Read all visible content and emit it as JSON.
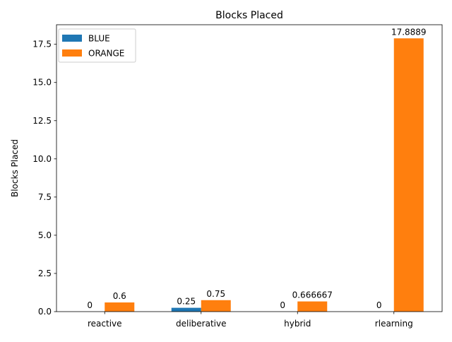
{
  "chart_data": {
    "type": "bar",
    "title": "Blocks Placed",
    "xlabel": "",
    "ylabel": "Blocks Placed",
    "categories": [
      "reactive",
      "deliberative",
      "hybrid",
      "rlearning"
    ],
    "series": [
      {
        "name": "BLUE",
        "color": "#1f77b4",
        "values": [
          0,
          0.25,
          0,
          0
        ],
        "labels": [
          "0",
          "0.25",
          "0",
          "0"
        ]
      },
      {
        "name": "ORANGE",
        "color": "#ff7f0e",
        "values": [
          0.6,
          0.75,
          0.666667,
          17.8889
        ],
        "labels": [
          "0.6",
          "0.75",
          "0.666667",
          "17.8889"
        ]
      }
    ],
    "ylim": [
      0,
      18.78
    ],
    "yticks": [
      "0.0",
      "2.5",
      "5.0",
      "7.5",
      "10.0",
      "12.5",
      "15.0",
      "17.5"
    ],
    "legend": "top-left",
    "grid": false
  }
}
